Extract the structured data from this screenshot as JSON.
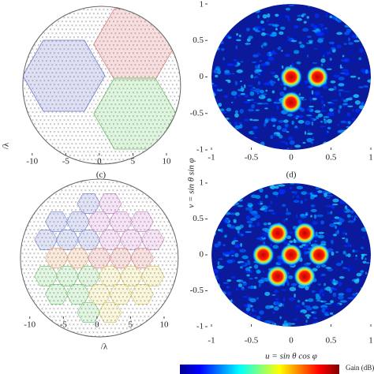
{
  "chart_data": [
    {
      "type": "array",
      "caption": "(c)",
      "xlabel": "/λ",
      "xlim": [
        -11.5,
        12
      ],
      "xticks": [
        -10,
        -5,
        0,
        5,
        10
      ]
    },
    {
      "type": "beam",
      "caption": "(d)",
      "ylabel": "v = sin θ sin φ",
      "xlim": [
        -1,
        1
      ],
      "ylim": [
        -1,
        1
      ],
      "xticks": [
        -1,
        -0.5,
        0,
        0.5,
        1
      ],
      "yticks": [
        1,
        0.5,
        0,
        -0.5,
        -1
      ],
      "x": [
        0,
        0.33,
        0
      ],
      "values": [
        0,
        0,
        -0.35
      ]
    },
    {
      "type": "array",
      "xlabel": "/λ",
      "xlim": [
        -11.5,
        12
      ],
      "xticks": [
        -10,
        -5,
        0,
        5,
        10
      ]
    },
    {
      "type": "beam",
      "xlabel": "u = sin θ cos φ",
      "colorbar_label": "Gain (dB)",
      "xlim": [
        -1,
        1
      ],
      "ylim": [
        -1,
        1
      ],
      "xticks": [
        -1,
        -0.5,
        0,
        0.5,
        1
      ],
      "yticks": [
        1,
        0.5,
        0,
        -0.5,
        -1
      ],
      "x": [
        0,
        0.35,
        0.17,
        -0.17,
        -0.35,
        -0.17,
        0.17
      ],
      "values": [
        0,
        0,
        0.3,
        0.3,
        0,
        -0.3,
        -0.3
      ]
    }
  ]
}
